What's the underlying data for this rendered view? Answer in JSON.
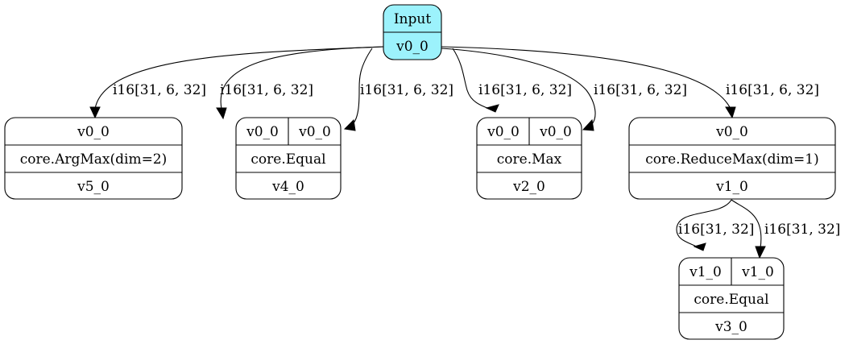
{
  "colors": {
    "input_fill": "#9cf2fc",
    "node_fill": "#ffffff",
    "stroke": "#000000"
  },
  "nodes": {
    "input": {
      "title": "Input",
      "out": "v0_0"
    },
    "argmax": {
      "in": "v0_0",
      "op": "core.ArgMax(dim=2)",
      "out": "v5_0"
    },
    "equal1": {
      "in_a": "v0_0",
      "in_b": "v0_0",
      "op": "core.Equal",
      "out": "v4_0"
    },
    "max": {
      "in_a": "v0_0",
      "in_b": "v0_0",
      "op": "core.Max",
      "out": "v2_0"
    },
    "reducemax": {
      "in": "v0_0",
      "op": "core.ReduceMax(dim=1)",
      "out": "v1_0"
    },
    "equal2": {
      "in_a": "v1_0",
      "in_b": "v1_0",
      "op": "core.Equal",
      "out": "v3_0"
    }
  },
  "edges": [
    {
      "label": "i16[31, 6, 32]"
    },
    {
      "label": "i16[31, 6, 32]"
    },
    {
      "label": "i16[31, 6, 32]"
    },
    {
      "label": "i16[31, 6, 32]"
    },
    {
      "label": "i16[31, 6, 32]"
    },
    {
      "label": "i16[31, 6, 32]"
    },
    {
      "label": "i16[31, 32]"
    },
    {
      "label": "i16[31, 32]"
    }
  ]
}
